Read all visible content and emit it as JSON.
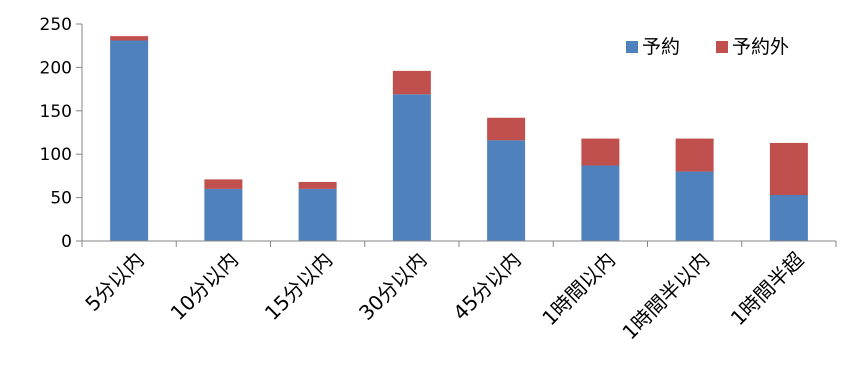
{
  "chart_data": {
    "type": "bar",
    "stacked": true,
    "categories": [
      "5分以内",
      "10分以内",
      "15分以内",
      "30分以内",
      "45分以内",
      "1時間以内",
      "1時間半以内",
      "1時間半超"
    ],
    "series": [
      {
        "name": "予約",
        "color": "#4F81BD",
        "values": [
          231,
          60,
          60,
          169,
          116,
          87,
          80,
          53
        ]
      },
      {
        "name": "予約外",
        "color": "#C0504D",
        "values": [
          5,
          11,
          8,
          27,
          26,
          31,
          38,
          60
        ]
      }
    ],
    "ylim": [
      0,
      250
    ],
    "yticks": [
      0,
      50,
      100,
      150,
      200,
      250
    ],
    "grid": false,
    "legend_position": "top-right",
    "title": "",
    "xlabel": "",
    "ylabel": ""
  }
}
